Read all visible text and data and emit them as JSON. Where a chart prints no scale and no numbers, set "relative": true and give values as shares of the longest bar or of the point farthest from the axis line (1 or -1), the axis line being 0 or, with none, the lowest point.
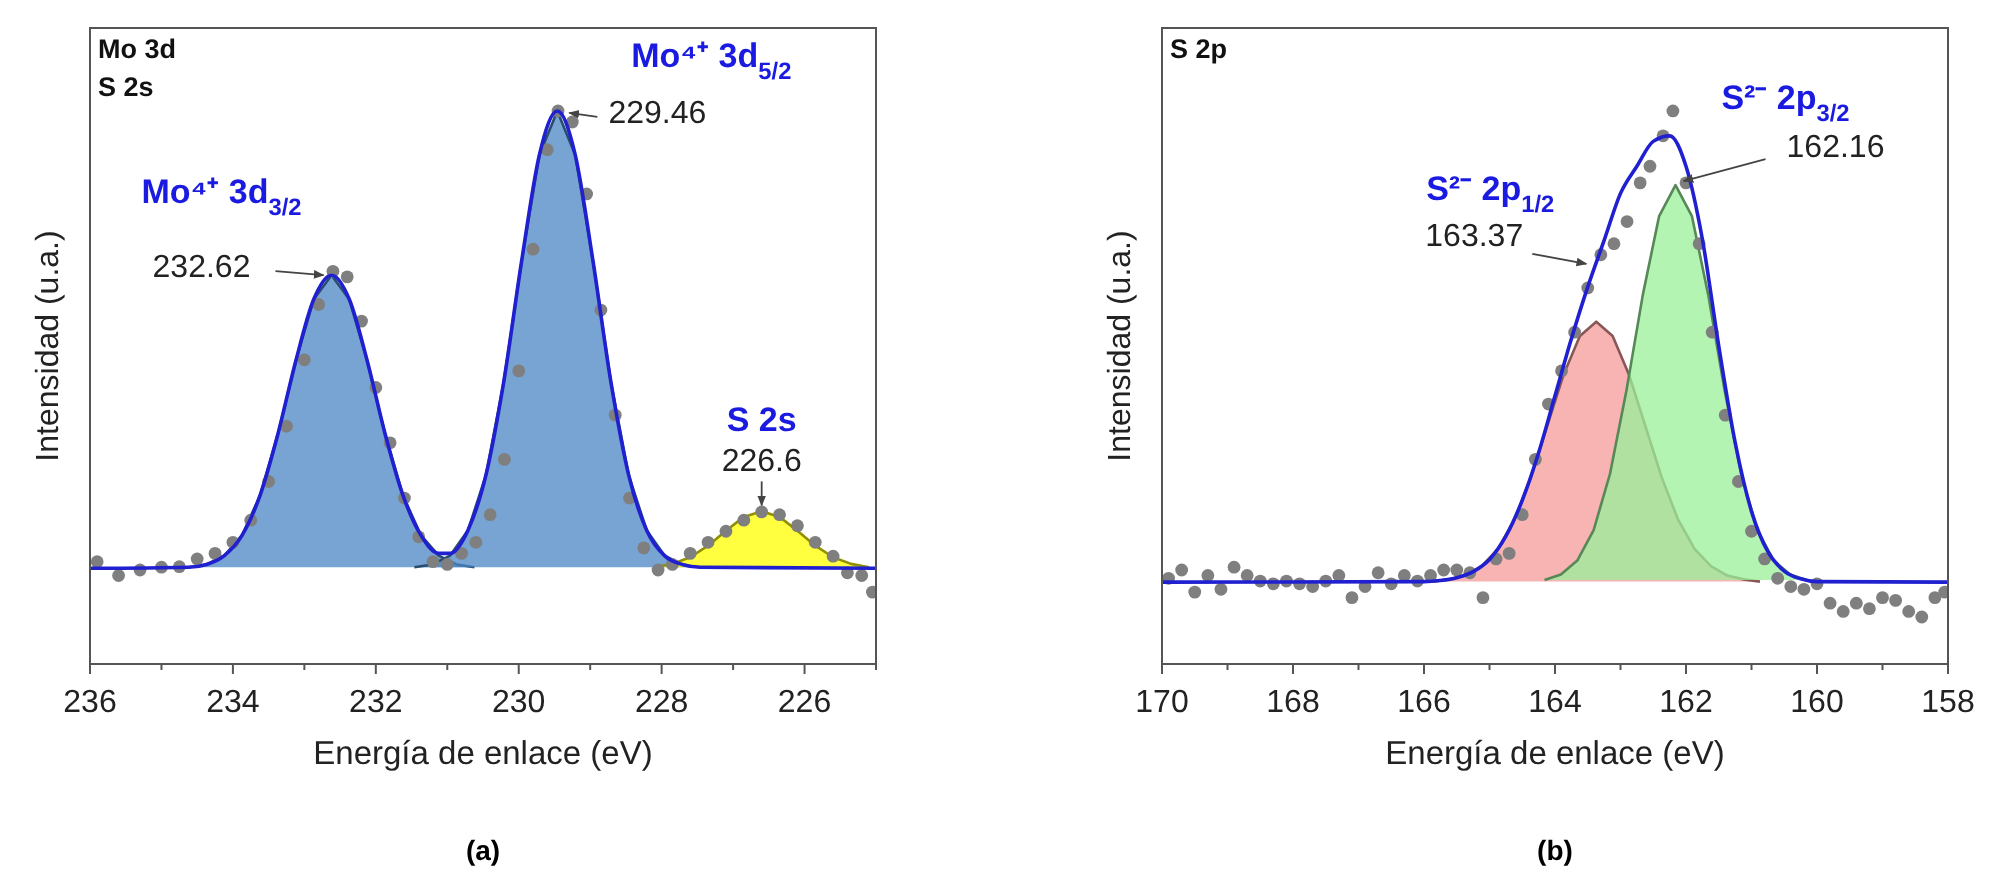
{
  "chart_data": [
    {
      "type": "line",
      "title": "(a)",
      "relative": true,
      "xlabel": "Energía de enlace (eV)",
      "ylabel": "Intensidad (u.a.)",
      "xlim": [
        236,
        225
      ],
      "xticks": [
        236,
        {
          "value": 235,
          "label": null
        },
        234,
        {
          "value": 233,
          "label": null
        },
        232,
        {
          "value": 231,
          "label": null
        },
        230,
        {
          "value": 229,
          "label": null
        },
        228,
        {
          "value": 227,
          "label": null
        },
        226,
        {
          "value": 225,
          "label": null
        }
      ],
      "annotations": [
        "Mo 3d",
        "S 2s",
        {
          "text": "Mo⁴⁺ 3d$_{3/2}$",
          "x": 232.62,
          "y": 0.703
        },
        {
          "text": "232.62",
          "x": 232.62,
          "y": 0.703
        },
        {
          "text": "Mo⁴⁺ 3d$_{5/2}$",
          "x": 229.46,
          "y": 1.0
        },
        {
          "text": "229.46",
          "x": 229.46,
          "y": 1.0
        },
        {
          "text": "S 2s",
          "x": 226.6,
          "y": 0.276
        },
        {
          "text": "226.6",
          "x": 226.6,
          "y": 0.276
        }
      ],
      "series": [
        {
          "type": "area",
          "color": "#4a86c4",
          "x": [
            234.62,
            234.37,
            234.12,
            233.87,
            233.62,
            233.37,
            233.12,
            232.87,
            232.62,
            232.37,
            232.12,
            231.87,
            231.62,
            231.37,
            231.12,
            230.87,
            230.62
          ],
          "values": [
            0.175,
            0.18,
            0.196,
            0.233,
            0.305,
            0.416,
            0.548,
            0.659,
            0.703,
            0.659,
            0.548,
            0.416,
            0.305,
            0.233,
            0.196,
            0.18,
            0.175
          ]
        },
        {
          "type": "area",
          "color": "#4a86c4",
          "x": [
            231.46,
            231.21,
            230.96,
            230.71,
            230.46,
            230.21,
            229.96,
            229.71,
            229.46,
            229.21,
            228.96,
            228.71,
            228.46,
            228.21,
            227.96,
            227.71,
            227.46
          ],
          "values": [
            0.175,
            0.18,
            0.196,
            0.242,
            0.341,
            0.51,
            0.728,
            0.921,
            1.0,
            0.921,
            0.728,
            0.51,
            0.341,
            0.242,
            0.196,
            0.18,
            0.175
          ]
        },
        {
          "type": "area",
          "color": "#ffff00",
          "x": [
            228.1,
            227.85,
            227.6,
            227.35,
            227.1,
            226.85,
            226.6,
            226.35,
            226.1,
            225.85,
            225.6,
            225.35,
            225.1
          ],
          "values": [
            0.175,
            0.181,
            0.193,
            0.214,
            0.241,
            0.266,
            0.276,
            0.266,
            0.241,
            0.214,
            0.193,
            0.181,
            0.175
          ]
        },
        {
          "type": "scatter",
          "color": "#7f7f7f",
          "marker": "circle",
          "x": [
            235.9,
            235.6,
            235.3,
            235.0,
            234.75,
            234.5,
            234.25,
            234.0,
            233.75,
            233.5,
            233.25,
            233.0,
            232.8,
            232.6,
            232.4,
            232.2,
            232.0,
            231.8,
            231.6,
            231.4,
            231.2,
            231.0,
            230.8,
            230.6,
            230.4,
            230.2,
            230.0,
            229.8,
            229.6,
            229.45,
            229.25,
            229.05,
            228.85,
            228.65,
            228.45,
            228.25,
            228.05,
            227.85,
            227.6,
            227.35,
            227.1,
            226.85,
            226.6,
            226.35,
            226.1,
            225.85,
            225.6,
            225.4,
            225.2,
            225.05
          ],
          "values": [
            0.185,
            0.16,
            0.17,
            0.175,
            0.176,
            0.19,
            0.2,
            0.22,
            0.26,
            0.33,
            0.43,
            0.55,
            0.65,
            0.71,
            0.7,
            0.62,
            0.5,
            0.4,
            0.3,
            0.23,
            0.185,
            0.18,
            0.2,
            0.22,
            0.27,
            0.37,
            0.53,
            0.75,
            0.93,
            1.0,
            0.98,
            0.85,
            0.64,
            0.45,
            0.3,
            0.21,
            0.17,
            0.18,
            0.2,
            0.22,
            0.24,
            0.26,
            0.275,
            0.27,
            0.25,
            0.22,
            0.195,
            0.165,
            0.16,
            0.13
          ]
        },
        {
          "color": "#2020d0",
          "x": [
            236,
            234.62,
            234.37,
            234.12,
            233.87,
            233.62,
            233.37,
            233.12,
            232.87,
            232.62,
            232.37,
            232.12,
            231.87,
            231.62,
            231.37,
            231.12,
            230.96,
            230.71,
            230.46,
            230.21,
            229.96,
            229.71,
            229.46,
            229.21,
            228.96,
            228.71,
            228.46,
            228.21,
            227.96,
            227.71,
            227.46,
            225
          ],
          "values": [
            0.173,
            0.175,
            0.18,
            0.196,
            0.233,
            0.305,
            0.416,
            0.548,
            0.659,
            0.703,
            0.659,
            0.548,
            0.416,
            0.305,
            0.233,
            0.2,
            0.2,
            0.242,
            0.341,
            0.51,
            0.728,
            0.921,
            1.0,
            0.921,
            0.728,
            0.51,
            0.341,
            0.242,
            0.196,
            0.18,
            0.175,
            0.173
          ]
        }
      ]
    },
    {
      "type": "line",
      "title": "(b)",
      "relative": true,
      "xlabel": "Energía de enlace (eV)",
      "ylabel": "Intensidad (u.a.)",
      "xlim": [
        170,
        158
      ],
      "xticks": [
        170,
        {
          "value": 169,
          "label": null
        },
        168,
        {
          "value": 167,
          "label": null
        },
        166,
        {
          "value": 165,
          "label": null
        },
        164,
        {
          "value": 163,
          "label": null
        },
        162,
        {
          "value": 161,
          "label": null
        },
        160,
        {
          "value": 159,
          "label": null
        },
        158
      ],
      "annotations": [
        "S 2p",
        {
          "text": "S²⁻ 2p$_{1/2}$",
          "x": 163.37,
          "y": 0.72
        },
        {
          "text": "163.37",
          "x": 163.37,
          "y": 0.72
        },
        {
          "text": "S²⁻ 2p$_{3/2}$",
          "x": 162.16,
          "y": 0.866
        },
        {
          "text": "162.16",
          "x": 162.16,
          "y": 0.866
        }
      ],
      "series": [
        {
          "type": "area",
          "color": "#f59a9a",
          "x": [
            165.87,
            165.62,
            165.37,
            165.12,
            164.87,
            164.62,
            164.37,
            164.12,
            163.87,
            163.62,
            163.37,
            163.12,
            162.87,
            162.62,
            162.37,
            162.12,
            161.87,
            161.62,
            161.37,
            161.12,
            160.87
          ],
          "values": [
            0.149,
            0.153,
            0.16,
            0.177,
            0.208,
            0.261,
            0.337,
            0.43,
            0.523,
            0.593,
            0.619,
            0.593,
            0.523,
            0.43,
            0.337,
            0.261,
            0.208,
            0.177,
            0.16,
            0.153,
            0.149
          ]
        },
        {
          "type": "area",
          "color": "#9af09a",
          "x": [
            164.16,
            163.91,
            163.66,
            163.41,
            163.16,
            162.91,
            162.66,
            162.41,
            162.16,
            161.91,
            161.66,
            161.41,
            161.16,
            160.91,
            160.66,
            160.41,
            160.16
          ],
          "values": [
            0.152,
            0.162,
            0.187,
            0.242,
            0.344,
            0.494,
            0.667,
            0.81,
            0.866,
            0.81,
            0.667,
            0.494,
            0.344,
            0.242,
            0.187,
            0.162,
            0.152
          ]
        },
        {
          "type": "scatter",
          "color": "#7f7f7f",
          "marker": "circle",
          "x": [
            169.9,
            169.7,
            169.5,
            169.3,
            169.1,
            168.9,
            168.7,
            168.5,
            168.3,
            168.1,
            167.9,
            167.7,
            167.5,
            167.3,
            167.1,
            166.9,
            166.7,
            166.5,
            166.3,
            166.1,
            165.9,
            165.7,
            165.5,
            165.3,
            165.1,
            164.9,
            164.7,
            164.5,
            164.3,
            164.1,
            163.9,
            163.7,
            163.5,
            163.3,
            163.1,
            162.9,
            162.7,
            162.55,
            162.35,
            162.2,
            162.0,
            161.8,
            161.6,
            161.4,
            161.2,
            161.0,
            160.8,
            160.6,
            160.4,
            160.2,
            160.0,
            159.8,
            159.6,
            159.4,
            159.2,
            159.0,
            158.8,
            158.6,
            158.4,
            158.2,
            158.05
          ],
          "values": [
            0.155,
            0.17,
            0.13,
            0.16,
            0.135,
            0.175,
            0.16,
            0.15,
            0.145,
            0.15,
            0.145,
            0.14,
            0.15,
            0.16,
            0.12,
            0.14,
            0.165,
            0.145,
            0.16,
            0.15,
            0.16,
            0.17,
            0.17,
            0.165,
            0.12,
            0.19,
            0.2,
            0.27,
            0.37,
            0.47,
            0.53,
            0.6,
            0.68,
            0.74,
            0.76,
            0.8,
            0.87,
            0.9,
            0.955,
            1.0,
            0.87,
            0.76,
            0.6,
            0.45,
            0.33,
            0.24,
            0.19,
            0.155,
            0.14,
            0.135,
            0.145,
            0.11,
            0.095,
            0.11,
            0.1,
            0.12,
            0.115,
            0.095,
            0.085,
            0.12,
            0.13
          ]
        },
        {
          "color": "#2020d0",
          "x": [
            170,
            166,
            165.75,
            165.5,
            165.25,
            165,
            164.75,
            164.5,
            164.25,
            164,
            163.75,
            163.5,
            163.25,
            163,
            162.75,
            162.5,
            162.25,
            162,
            161.75,
            161.5,
            161.25,
            161,
            160.75,
            160.5,
            160.25,
            160,
            158
          ],
          "values": [
            0.148,
            0.149,
            0.151,
            0.156,
            0.167,
            0.189,
            0.231,
            0.296,
            0.382,
            0.485,
            0.588,
            0.682,
            0.766,
            0.851,
            0.9,
            0.945,
            0.955,
            0.9,
            0.768,
            0.575,
            0.401,
            0.276,
            0.203,
            0.168,
            0.154,
            0.149,
            0.148
          ]
        }
      ]
    }
  ]
}
